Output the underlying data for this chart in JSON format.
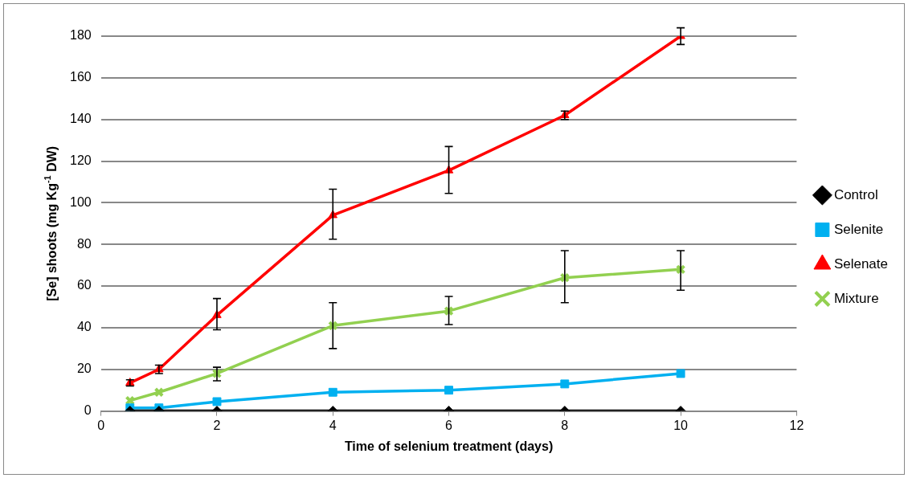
{
  "chart_data": {
    "type": "line",
    "xlabel": "Time of selenium treatment (days)",
    "ylabel": "[Se] shoots (mg Kg$^{-1}$ DW)",
    "x": [
      0.5,
      1,
      2,
      4,
      6,
      8,
      10
    ],
    "series": [
      {
        "name": "Control",
        "color": "#000000",
        "marker": "diamond",
        "values": [
          0,
          0,
          0,
          0,
          0,
          0,
          0
        ]
      },
      {
        "name": "Selenite",
        "color": "#00b0f0",
        "marker": "square",
        "values": [
          1.5,
          1.5,
          4.5,
          9,
          10,
          13,
          18
        ]
      },
      {
        "name": "Selenate",
        "color": "#ff0000",
        "marker": "triangle",
        "values": [
          13.5,
          20,
          46,
          94,
          115.5,
          142,
          180
        ],
        "errors": [
          1.5,
          2,
          [
            39,
            54
          ],
          [
            82.5,
            106.5
          ],
          [
            104.5,
            127
          ],
          2,
          4
        ]
      },
      {
        "name": "Mixture",
        "color": "#92d050",
        "marker": "cross",
        "values": [
          5,
          9,
          18,
          41,
          48,
          64,
          68
        ],
        "errors": [
          null,
          null,
          [
            14.5,
            21
          ],
          [
            30,
            52
          ],
          [
            41.5,
            55
          ],
          [
            52,
            77
          ],
          [
            58,
            77
          ]
        ]
      }
    ],
    "xlim": [
      0,
      12
    ],
    "xticks": [
      0,
      2,
      4,
      6,
      8,
      10,
      12
    ],
    "ylim": [
      0,
      180
    ],
    "yticks": [
      0,
      20,
      40,
      60,
      80,
      100,
      120,
      140,
      160,
      180
    ],
    "grid": "y",
    "legend": "right",
    "line_style": "solid"
  }
}
